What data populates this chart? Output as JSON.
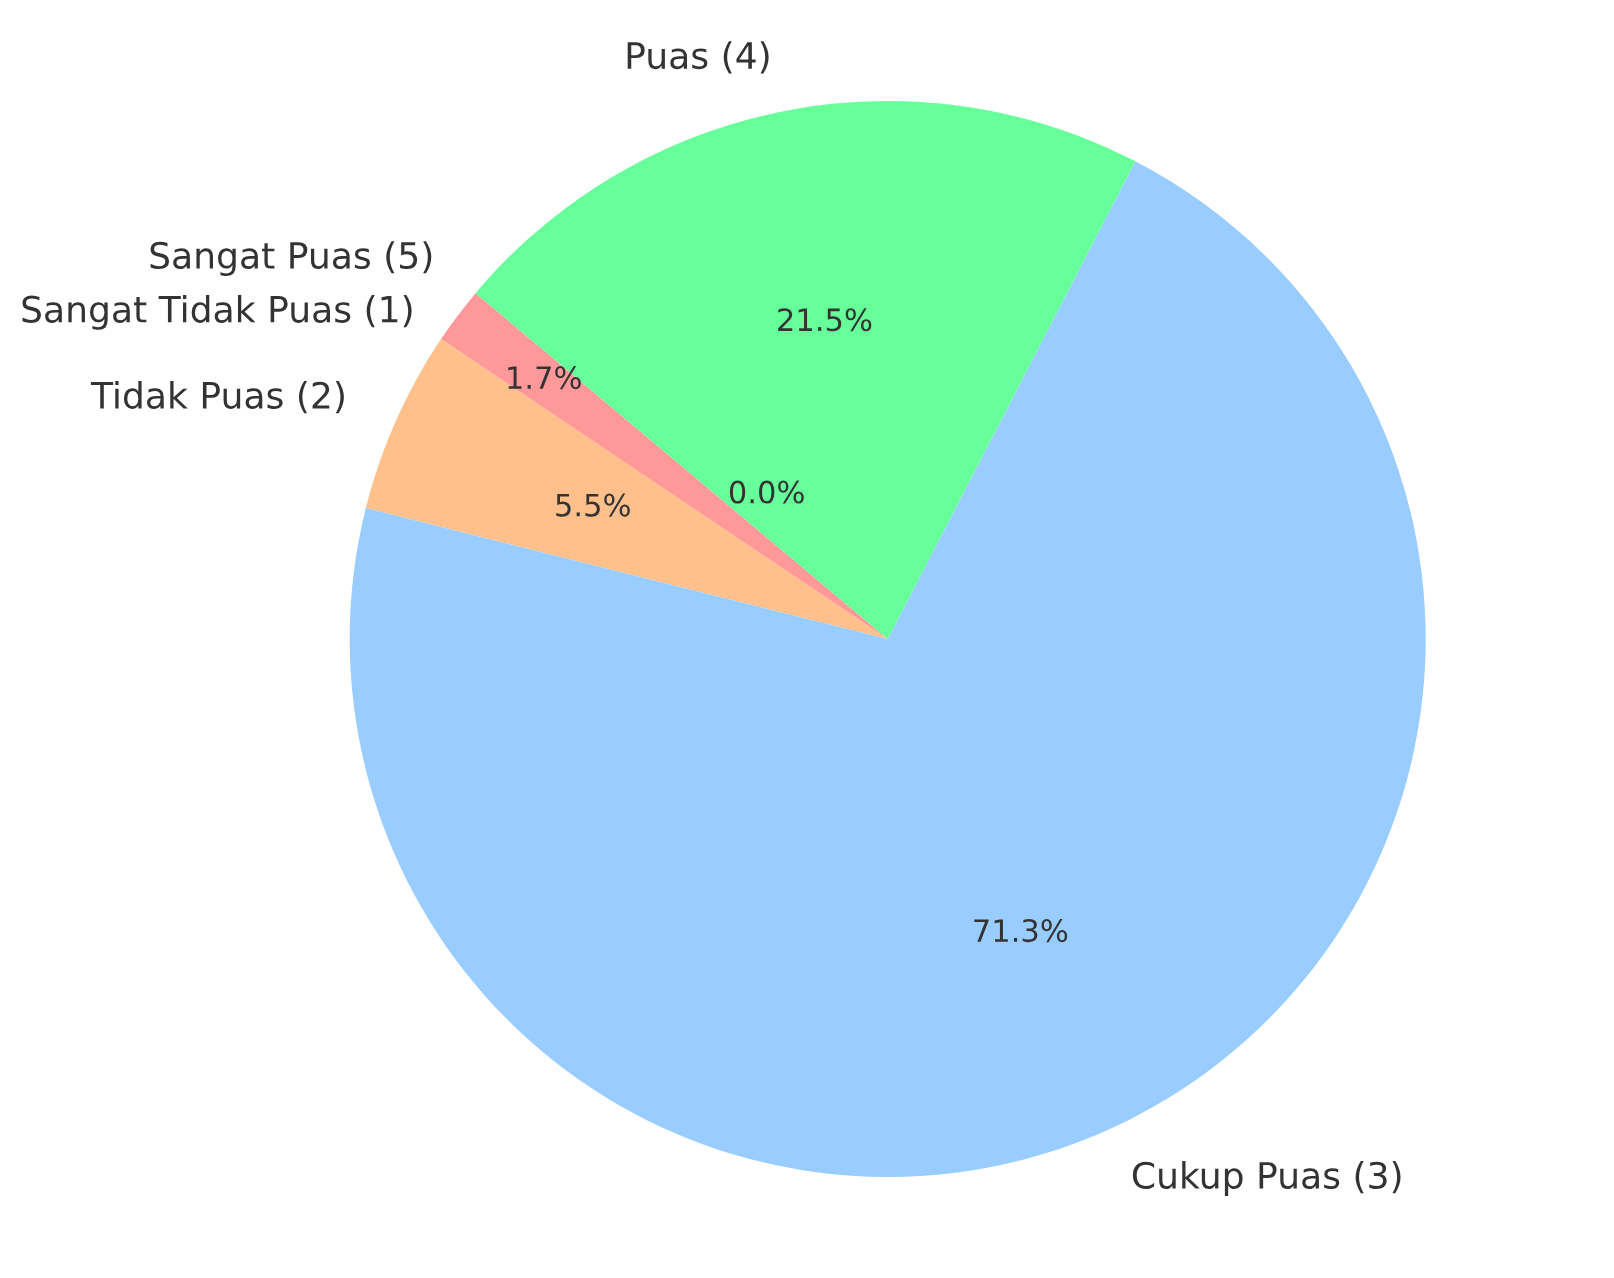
{
  "chart_data": {
    "type": "pie",
    "categories": [
      "Sangat Tidak Puas (1)",
      "Tidak Puas (2)",
      "Cukup Puas (3)",
      "Puas (4)",
      "Sangat Puas (5)"
    ],
    "values": [
      1.7,
      5.5,
      71.3,
      21.5,
      0.0
    ],
    "colors": [
      "#ff9999",
      "#ffc08c",
      "#99ccff",
      "#66ff99",
      "#c2c2f0"
    ],
    "value_labels": [
      "1.7%",
      "5.5%",
      "71.3%",
      "21.5%",
      "0.0%"
    ]
  }
}
